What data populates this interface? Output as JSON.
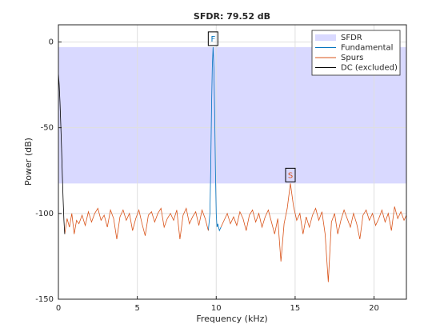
{
  "chart_data": {
    "type": "line",
    "title": "SFDR:  79.52 dB",
    "xlabel": "Frequency (kHz)",
    "ylabel": "Power (dB)",
    "xlim": [
      0,
      22.05
    ],
    "ylim": [
      -150,
      10
    ],
    "xticks": [
      0,
      5,
      10,
      15,
      20
    ],
    "yticks": [
      -150,
      -100,
      -50,
      0
    ],
    "grid": true,
    "legend": "northeast",
    "band": {
      "name": "SFDR",
      "color": "#d9d9ff"
    },
    "markers": [
      {
        "label": "F",
        "x": 9.8,
        "y": -3.0,
        "color": "#0072bd"
      },
      {
        "label": "S",
        "x": 14.7,
        "y": -82.52,
        "color": "#d95319"
      }
    ],
    "series": [
      {
        "name": "Fundamental",
        "color": "#0072bd",
        "x": [
          9.5,
          9.6,
          9.65,
          9.7,
          9.75,
          9.8,
          9.85,
          9.9,
          9.95,
          10.0,
          10.05,
          10.1,
          10.2,
          10.3
        ],
        "values": [
          -110,
          -100,
          -75,
          -40,
          -15,
          -3,
          -15,
          -40,
          -75,
          -100,
          -108,
          -106,
          -110,
          -108
        ]
      },
      {
        "name": "Spurs",
        "color": "#d95319",
        "x": [
          0.4,
          0.55,
          0.7,
          0.85,
          1.0,
          1.15,
          1.3,
          1.5,
          1.7,
          1.9,
          2.1,
          2.3,
          2.5,
          2.7,
          2.9,
          3.1,
          3.3,
          3.5,
          3.7,
          3.9,
          4.1,
          4.3,
          4.5,
          4.7,
          4.9,
          5.1,
          5.3,
          5.5,
          5.7,
          5.9,
          6.1,
          6.3,
          6.5,
          6.7,
          6.9,
          7.1,
          7.3,
          7.5,
          7.7,
          7.9,
          8.1,
          8.3,
          8.5,
          8.7,
          8.9,
          9.1,
          9.3,
          9.5,
          9.8,
          10.3,
          10.5,
          10.7,
          10.9,
          11.1,
          11.3,
          11.5,
          11.7,
          11.9,
          12.1,
          12.3,
          12.5,
          12.7,
          12.9,
          13.1,
          13.3,
          13.5,
          13.7,
          13.9,
          14.1,
          14.3,
          14.5,
          14.7,
          14.9,
          15.1,
          15.3,
          15.5,
          15.7,
          15.9,
          16.1,
          16.3,
          16.5,
          16.7,
          16.9,
          17.1,
          17.3,
          17.5,
          17.7,
          17.9,
          18.1,
          18.3,
          18.5,
          18.7,
          18.9,
          19.1,
          19.3,
          19.5,
          19.7,
          19.9,
          20.1,
          20.3,
          20.5,
          20.7,
          20.9,
          21.1,
          21.3,
          21.5,
          21.7,
          21.9,
          22.05
        ],
        "values": [
          -112,
          -103,
          -108,
          -100,
          -112,
          -104,
          -106,
          -101,
          -107,
          -99,
          -105,
          -100,
          -97,
          -104,
          -101,
          -108,
          -98,
          -103,
          -115,
          -102,
          -98,
          -104,
          -100,
          -110,
          -103,
          -98,
          -106,
          -113,
          -101,
          -99,
          -105,
          -100,
          -97,
          -108,
          -103,
          -100,
          -104,
          -98,
          -115,
          -101,
          -97,
          -106,
          -102,
          -99,
          -107,
          -98,
          -103,
          -110,
          null,
          -108,
          -104,
          -100,
          -106,
          -102,
          -107,
          -99,
          -103,
          -110,
          -101,
          -98,
          -105,
          -100,
          -108,
          -102,
          -98,
          -105,
          -112,
          -103,
          -128,
          -106,
          -97,
          -82.52,
          -96,
          -104,
          -100,
          -112,
          -102,
          -108,
          -101,
          -97,
          -104,
          -99,
          -112,
          -140,
          -105,
          -100,
          -112,
          -104,
          -98,
          -103,
          -108,
          -100,
          -106,
          -115,
          -101,
          -98,
          -104,
          -100,
          -107,
          -103,
          -98,
          -105,
          -100,
          -110,
          -96,
          -103,
          -99,
          -104,
          -101
        ]
      },
      {
        "name": "DC (excluded)",
        "color": "#000000",
        "x": [
          0,
          0.05,
          0.1,
          0.15,
          0.2,
          0.25,
          0.3,
          0.35,
          0.4
        ],
        "values": [
          -18,
          -25,
          -35,
          -48,
          -62,
          -78,
          -92,
          -104,
          -112
        ]
      }
    ]
  }
}
